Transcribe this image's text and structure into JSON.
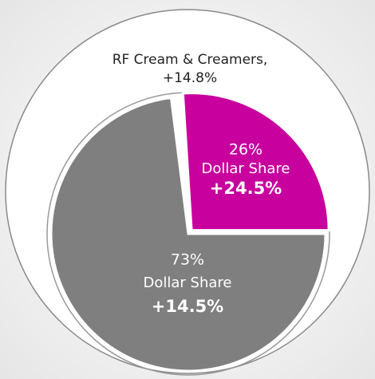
{
  "chart_data": {
    "type": "pie",
    "outer_label": [
      "RF Cream & Creamers,",
      "+14.8%"
    ],
    "categories": [
      "Dollar Share",
      "Dollar Share"
    ],
    "values": [
      26,
      73
    ],
    "value_labels": [
      "26%",
      "73%"
    ],
    "change_labels": [
      "+24.5%",
      "+14.5%"
    ],
    "colors": [
      "#c8009e",
      "#7f7f7f"
    ]
  }
}
